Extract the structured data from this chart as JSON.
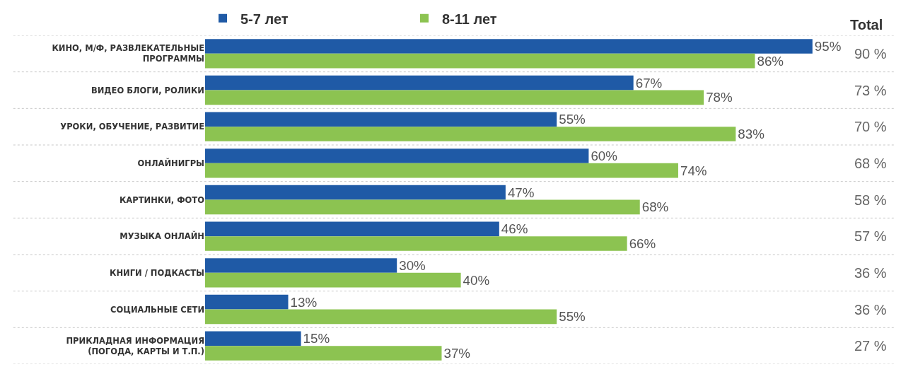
{
  "chart_data": {
    "type": "bar",
    "orientation": "horizontal",
    "legend": "top",
    "categories": [
      "КИНО, М/Ф, РАЗВЛЕКАТЕЛЬНЫЕ\nПРОГРАММЫ",
      "ВИДЕО БЛОГИ, РОЛИКИ",
      "УРОКИ, ОБУЧЕНИЕ, РАЗВИТИЕ",
      "ОНЛАЙНИГРЫ",
      "КАРТИНКИ, ФОТО",
      "МУЗЫКА ОНЛАЙН",
      "КНИГИ / ПОДКАСТЫ",
      "СОЦИАЛЬНЫЕ СЕТИ",
      "ПРИКЛАДНАЯ ИНФОРМАЦИЯ\n(ПОГОДА, КАРТЫ И Т.П.)"
    ],
    "series": [
      {
        "name": "5-7 лет",
        "color": "#1f5aa6",
        "values": [
          95,
          67,
          55,
          60,
          47,
          46,
          30,
          13,
          15
        ],
        "value_labels": [
          "95%",
          "67%",
          "55%",
          "60%",
          "47%",
          "46%",
          "30%",
          "13%",
          "15%"
        ]
      },
      {
        "name": "8-11 лет",
        "color": "#8cc351",
        "values": [
          86,
          78,
          83,
          74,
          68,
          66,
          40,
          55,
          37
        ],
        "value_labels": [
          "86%",
          "78%",
          "83%",
          "74%",
          "68%",
          "66%",
          "40%",
          "55%",
          "37%"
        ]
      }
    ],
    "annotations": [
      "Total",
      "90 %",
      "73 %",
      "70 %",
      "68 %",
      "58 %",
      "57 %",
      "36 %",
      "36 %",
      "27 %"
    ]
  }
}
